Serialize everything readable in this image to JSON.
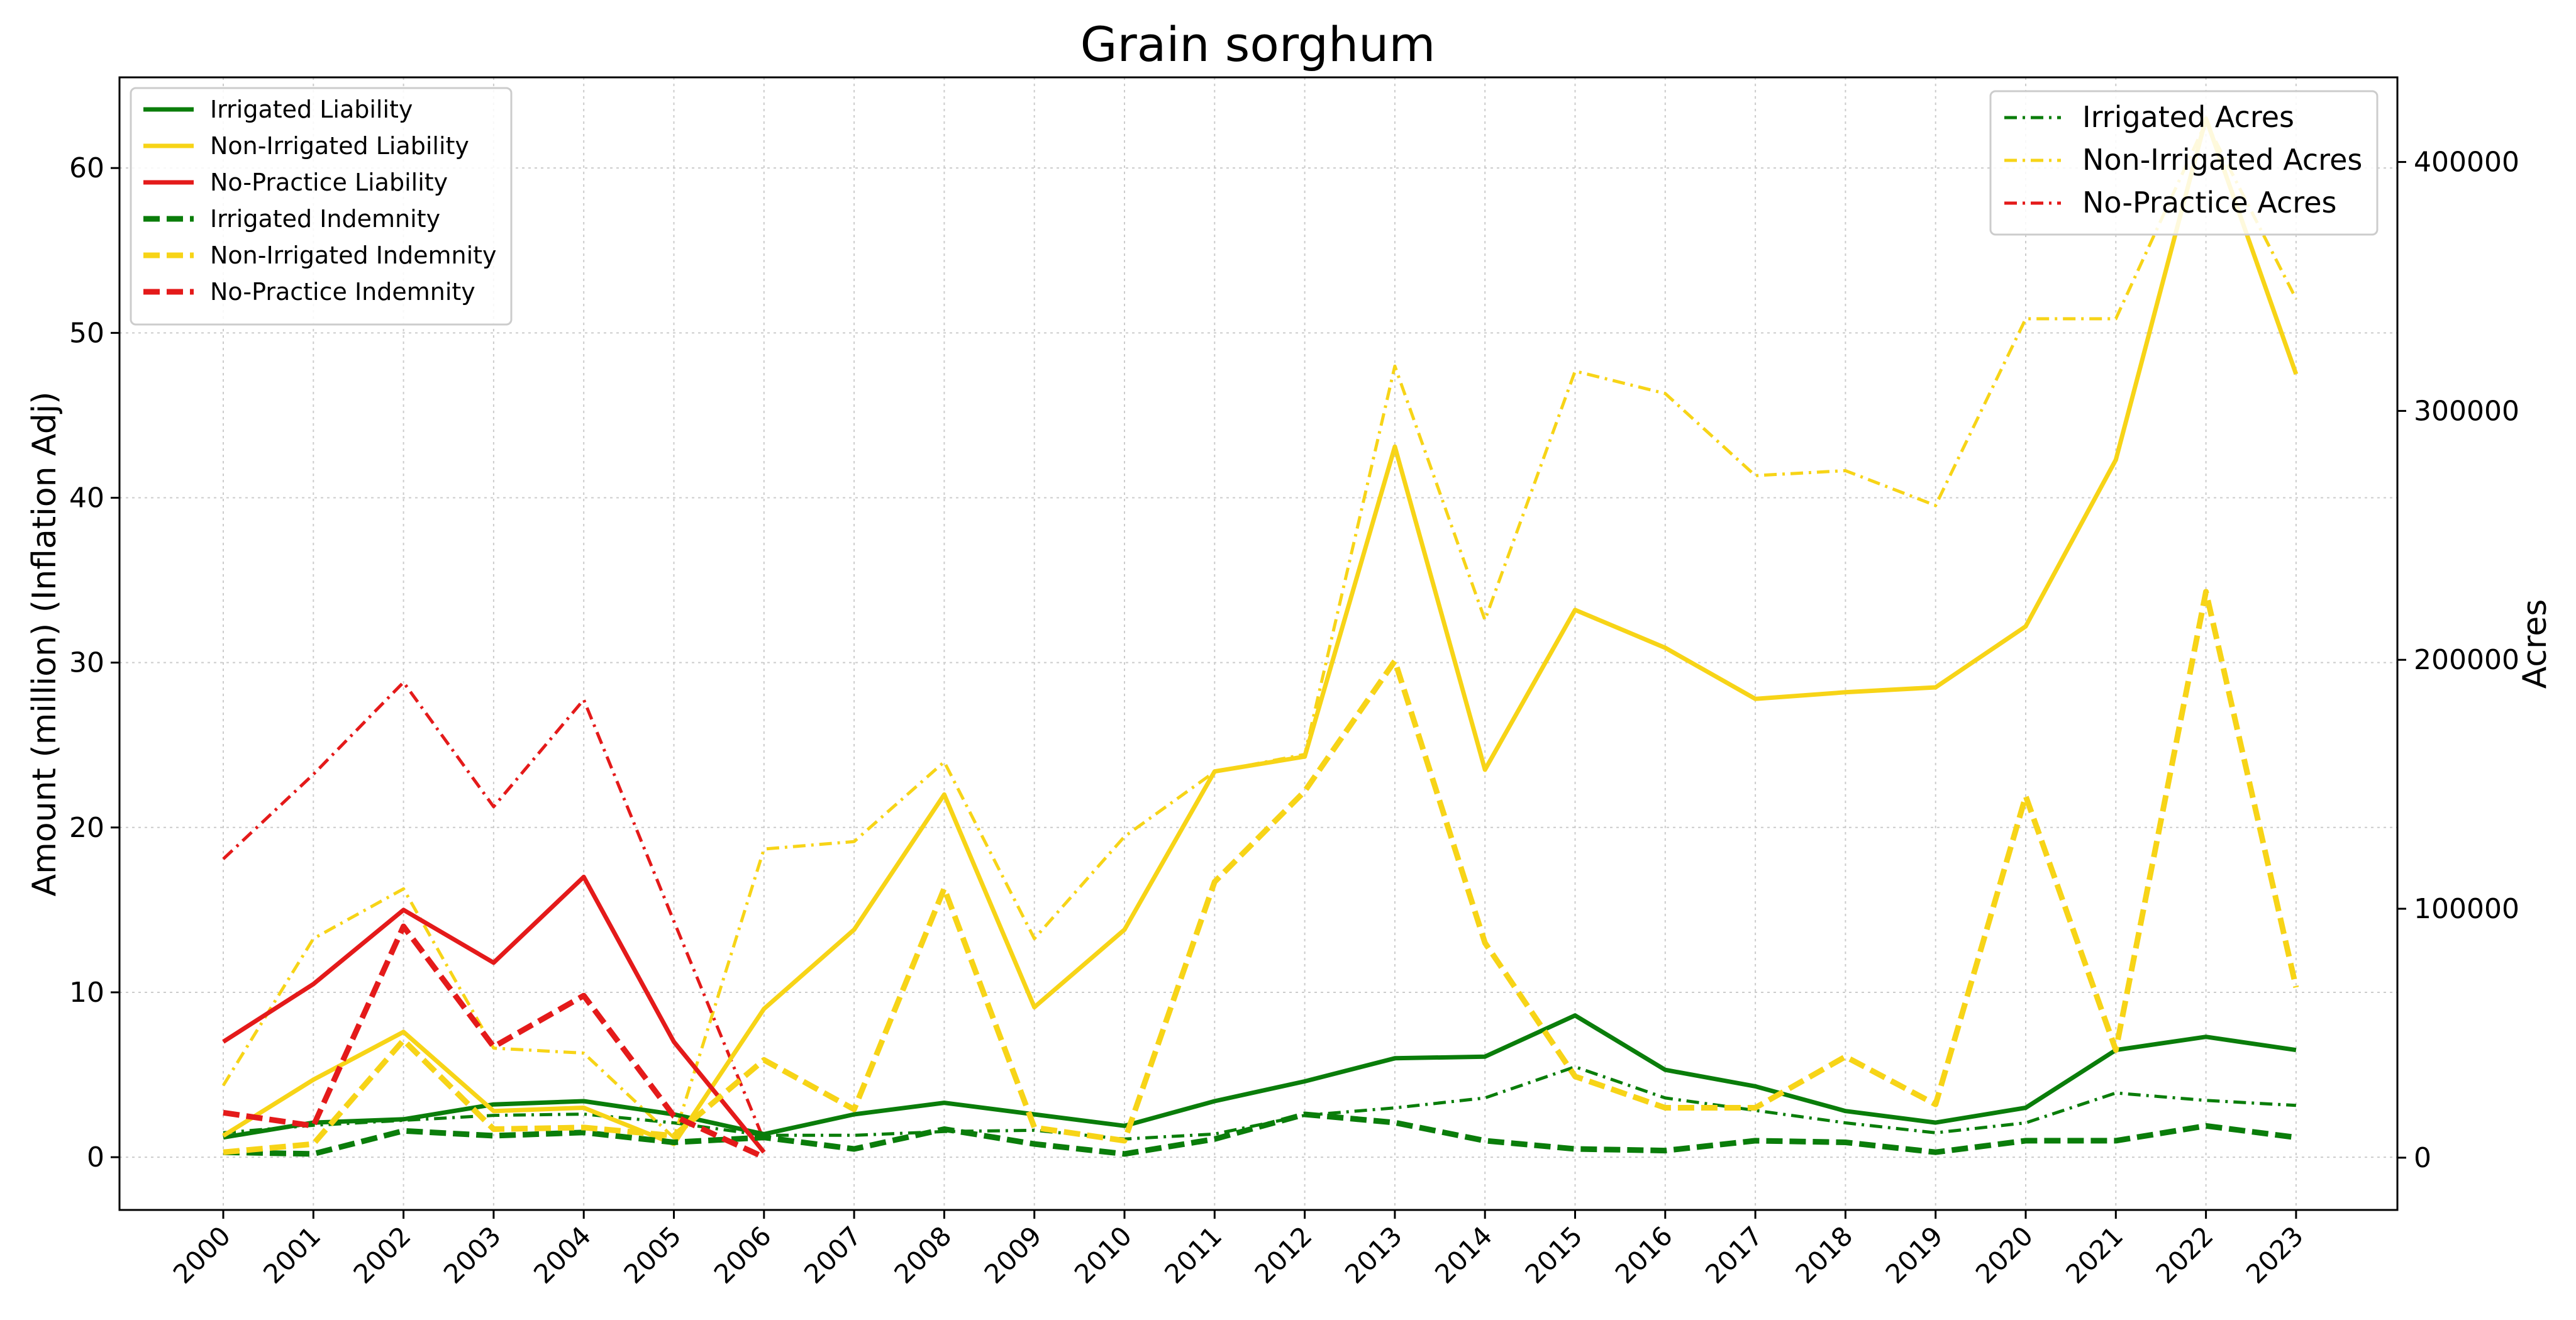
{
  "chart_data": {
    "type": "line",
    "title": "Grain sorghum",
    "ylabel_left": "Amount (million) (Inflation Adj)",
    "ylabel_right": "Acres",
    "xlabel": "",
    "categories": [
      "2000",
      "2001",
      "2002",
      "2003",
      "2004",
      "2005",
      "2006",
      "2007",
      "2008",
      "2009",
      "2010",
      "2011",
      "2012",
      "2013",
      "2014",
      "2015",
      "2016",
      "2017",
      "2018",
      "2019",
      "2020",
      "2021",
      "2022",
      "2023"
    ],
    "ylim_left": [
      -3.2,
      65.5
    ],
    "ylim_right": [
      -21000,
      434000
    ],
    "yticks_left": [
      0,
      10,
      20,
      30,
      40,
      50,
      60
    ],
    "yticks_right": [
      0,
      100000,
      200000,
      300000,
      400000
    ],
    "grid": true,
    "legend_left_position": "top-left",
    "legend_right_position": "top-right",
    "colors": {
      "green": "#0a7d0a",
      "yellow": "#f7d417",
      "red": "#e41a1a"
    },
    "series_left": [
      {
        "name": "Irrigated Liability",
        "color": "#0a7d0a",
        "dash": "solid",
        "values": [
          1.2,
          2.1,
          2.3,
          3.2,
          3.4,
          2.6,
          1.4,
          2.6,
          3.3,
          2.6,
          1.9,
          3.4,
          4.6,
          6.0,
          6.1,
          8.6,
          5.3,
          4.3,
          2.8,
          2.1,
          3.0,
          6.5,
          7.3,
          6.5
        ]
      },
      {
        "name": "Non-Irrigated Liability",
        "color": "#f7d417",
        "dash": "solid",
        "values": [
          1.3,
          4.7,
          7.6,
          2.8,
          3.0,
          0.8,
          9.0,
          13.8,
          22.0,
          9.1,
          13.8,
          23.4,
          24.3,
          43.1,
          23.5,
          33.2,
          30.9,
          27.8,
          28.2,
          28.5,
          32.2,
          42.3,
          63.0,
          47.5
        ]
      },
      {
        "name": "No-Practice Liability",
        "color": "#e41a1a",
        "dash": "solid",
        "values": [
          7.0,
          10.5,
          15.0,
          11.8,
          17.0,
          7.0,
          0.3,
          null,
          null,
          null,
          null,
          null,
          null,
          null,
          null,
          null,
          null,
          null,
          null,
          null,
          null,
          null,
          null,
          null
        ]
      },
      {
        "name": "Irrigated Indemnity",
        "color": "#0a7d0a",
        "dash": "dashed",
        "values": [
          0.3,
          0.2,
          1.6,
          1.3,
          1.5,
          0.9,
          1.2,
          0.5,
          1.7,
          0.8,
          0.2,
          1.1,
          2.6,
          2.1,
          1.0,
          0.5,
          0.4,
          1.0,
          0.9,
          0.3,
          1.0,
          1.0,
          1.9,
          1.2
        ]
      },
      {
        "name": "Non-Irrigated Indemnity",
        "color": "#f7d417",
        "dash": "dashed",
        "values": [
          0.3,
          0.8,
          7.1,
          1.7,
          1.8,
          1.3,
          5.9,
          2.9,
          16.3,
          1.8,
          1.0,
          16.7,
          22.2,
          30.1,
          13.0,
          4.9,
          3.0,
          3.0,
          6.1,
          3.2,
          21.9,
          6.5,
          34.3,
          10.3
        ]
      },
      {
        "name": "No-Practice Indemnity",
        "color": "#e41a1a",
        "dash": "dashed",
        "values": [
          2.7,
          1.9,
          14.0,
          6.7,
          9.8,
          2.5,
          0.0,
          null,
          null,
          null,
          null,
          null,
          null,
          null,
          null,
          null,
          null,
          null,
          null,
          null,
          null,
          null,
          null,
          null
        ]
      }
    ],
    "series_right": [
      {
        "name": "Irrigated Acres",
        "color": "#0a7d0a",
        "dash": "dashdot",
        "values": [
          10000,
          13000,
          15000,
          17000,
          17500,
          14000,
          9000,
          9000,
          10500,
          11000,
          7500,
          9500,
          17000,
          20000,
          24000,
          36500,
          24000,
          19000,
          14000,
          10000,
          14000,
          26000,
          23000,
          21000
        ]
      },
      {
        "name": "Non-Irrigated Acres",
        "color": "#f7d417",
        "dash": "dashdot",
        "values": [
          29000,
          88000,
          108000,
          44000,
          42000,
          8000,
          124000,
          127000,
          159000,
          88000,
          129000,
          155000,
          162000,
          318000,
          216000,
          316000,
          307000,
          274000,
          276000,
          262000,
          337000,
          337000,
          416000,
          345000
        ]
      },
      {
        "name": "No-Practice Acres",
        "color": "#e41a1a",
        "dash": "dashdot",
        "values": [
          120000,
          154000,
          191000,
          141000,
          184000,
          95000,
          7000,
          null,
          null,
          null,
          null,
          null,
          null,
          null,
          null,
          null,
          null,
          null,
          null,
          null,
          null,
          null,
          null,
          null
        ]
      }
    ]
  }
}
